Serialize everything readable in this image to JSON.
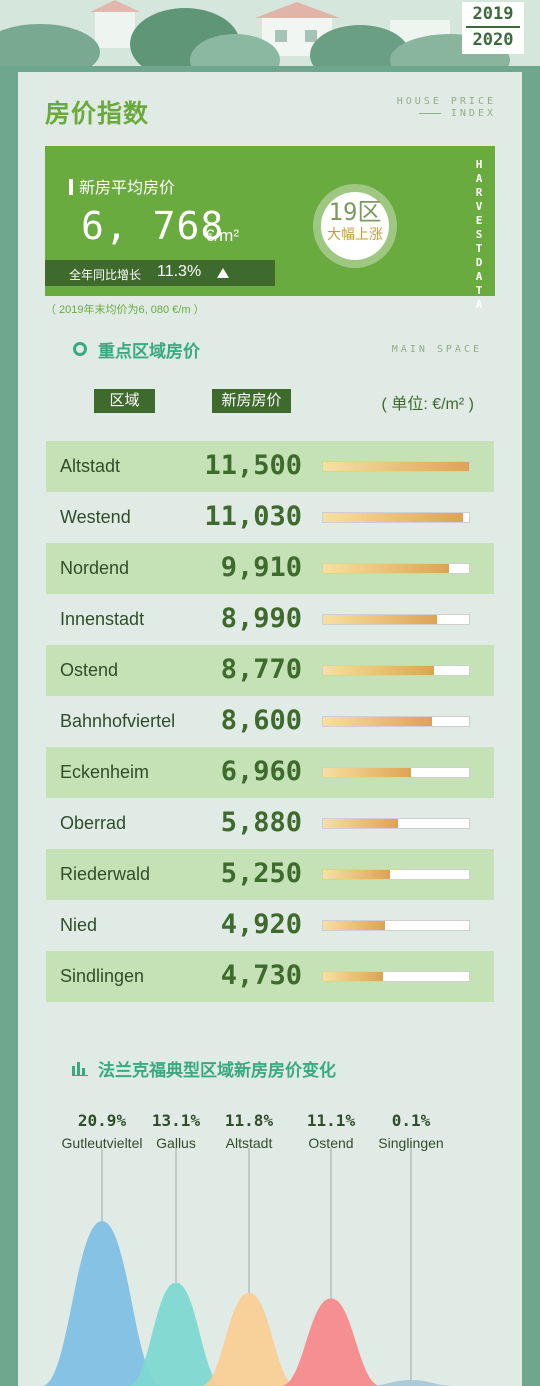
{
  "badge": {
    "year_top": "2019",
    "year_bottom": "2020"
  },
  "header": {
    "title": "房价指数",
    "title_en_1": "HOUSE PRICE",
    "title_en_2": "INDEX"
  },
  "summary": {
    "label": "新房平均房价",
    "price": "6, 768",
    "unit": "€/m²",
    "growth_label": "全年同比增长",
    "growth_value": "11.3%",
    "circle_count": "19区",
    "circle_text": "大幅上涨",
    "brand": "HARVESTDATA",
    "note": "（ 2019年末均价为6, 080 €/m ）"
  },
  "section1": {
    "title": "重点区域房价",
    "title_en": "MAIN SPACE",
    "col_district": "区域",
    "col_price": "新房房价",
    "unit_note": "( 单位: €/m² )"
  },
  "districts": [
    {
      "name": "Altstadt",
      "price": "11,500",
      "value": 11500
    },
    {
      "name": "Westend",
      "price": "11,030",
      "value": 11030
    },
    {
      "name": "Nordend",
      "price": "9,910",
      "value": 9910
    },
    {
      "name": "Innenstadt",
      "price": "8,990",
      "value": 8990
    },
    {
      "name": "Ostend",
      "price": "8,770",
      "value": 8770
    },
    {
      "name": "Bahnhofviertel",
      "price": "8,600",
      "value": 8600
    },
    {
      "name": "Eckenheim",
      "price": "6,960",
      "value": 6960
    },
    {
      "name": "Oberrad",
      "price": "5,880",
      "value": 5880
    },
    {
      "name": "Riederwald",
      "price": "5,250",
      "value": 5250
    },
    {
      "name": "Nied",
      "price": "4,920",
      "value": 4920
    },
    {
      "name": "Sindlingen",
      "price": "4,730",
      "value": 4730
    }
  ],
  "section2": {
    "title": "法兰克福典型区域新房房价变化"
  },
  "chart_data": {
    "type": "area",
    "categories": [
      "Gutleutvieltel",
      "Gallus",
      "Altstadt",
      "Ostend",
      "Singlingen"
    ],
    "values": [
      20.9,
      13.1,
      11.8,
      11.1,
      0.1
    ],
    "value_labels": [
      "20.9%",
      "13.1%",
      "11.8%",
      "11.1%",
      "0.1%"
    ],
    "colors": [
      "#7fc0e3",
      "#7ed8d2",
      "#f8cf96",
      "#f78a8c",
      "#a9c9d9"
    ]
  },
  "colors": {
    "accent": "#6aab40",
    "dark": "#3e6a2d",
    "teal": "#3aa982"
  }
}
